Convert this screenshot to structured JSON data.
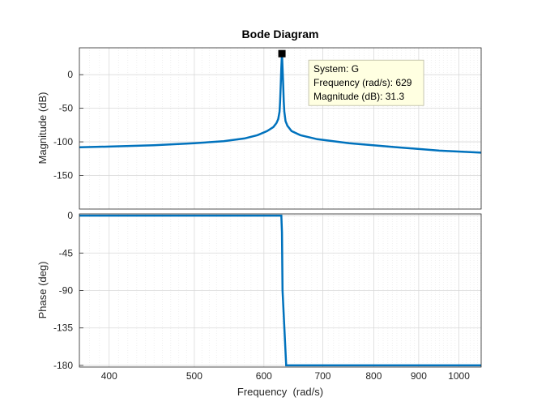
{
  "chart_data": [
    {
      "type": "line",
      "title": "Bode Diagram",
      "ylabel": "Magnitude (dB)",
      "xscale": "log",
      "xlim": [
        370,
        1060
      ],
      "ylim": [
        -200,
        40
      ],
      "yticks": [
        0,
        -50,
        -100,
        -150
      ],
      "grid": true,
      "series": [
        {
          "color": "#0072BD",
          "x": [
            370,
            400,
            450,
            500,
            540,
            570,
            590,
            605,
            615,
            620,
            623,
            625,
            626,
            627,
            628,
            629,
            630,
            631,
            632,
            633,
            635,
            638,
            645,
            660,
            690,
            750,
            850,
            950,
            1060
          ],
          "y": [
            -108,
            -107,
            -105,
            -102,
            -99,
            -95,
            -90,
            -84,
            -78,
            -72,
            -66,
            -55,
            -40,
            -15,
            10,
            31.3,
            10,
            -15,
            -40,
            -55,
            -69,
            -76,
            -84,
            -90,
            -96,
            -102,
            -108,
            -113,
            -116
          ]
        }
      ],
      "datatip": {
        "x": 629,
        "y": 31.3,
        "lines": [
          "System: G",
          "Frequency (rad/s): 629",
          "Magnitude (dB): 31.3"
        ]
      }
    },
    {
      "type": "line",
      "xlabel": "Frequency  (rad/s)",
      "ylabel": "Phase (deg)",
      "xscale": "log",
      "xlim": [
        370,
        1060
      ],
      "ylim": [
        -182,
        2
      ],
      "yticks": [
        0,
        -45,
        -90,
        -135,
        -180
      ],
      "xticks": [
        400,
        500,
        600,
        700,
        800,
        900,
        1000
      ],
      "grid": true,
      "series": [
        {
          "color": "#0072BD",
          "x": [
            370,
            628,
            629,
            630,
            636,
            1060
          ],
          "y": [
            0,
            0,
            -20,
            -90,
            -180,
            -180
          ]
        }
      ]
    }
  ]
}
